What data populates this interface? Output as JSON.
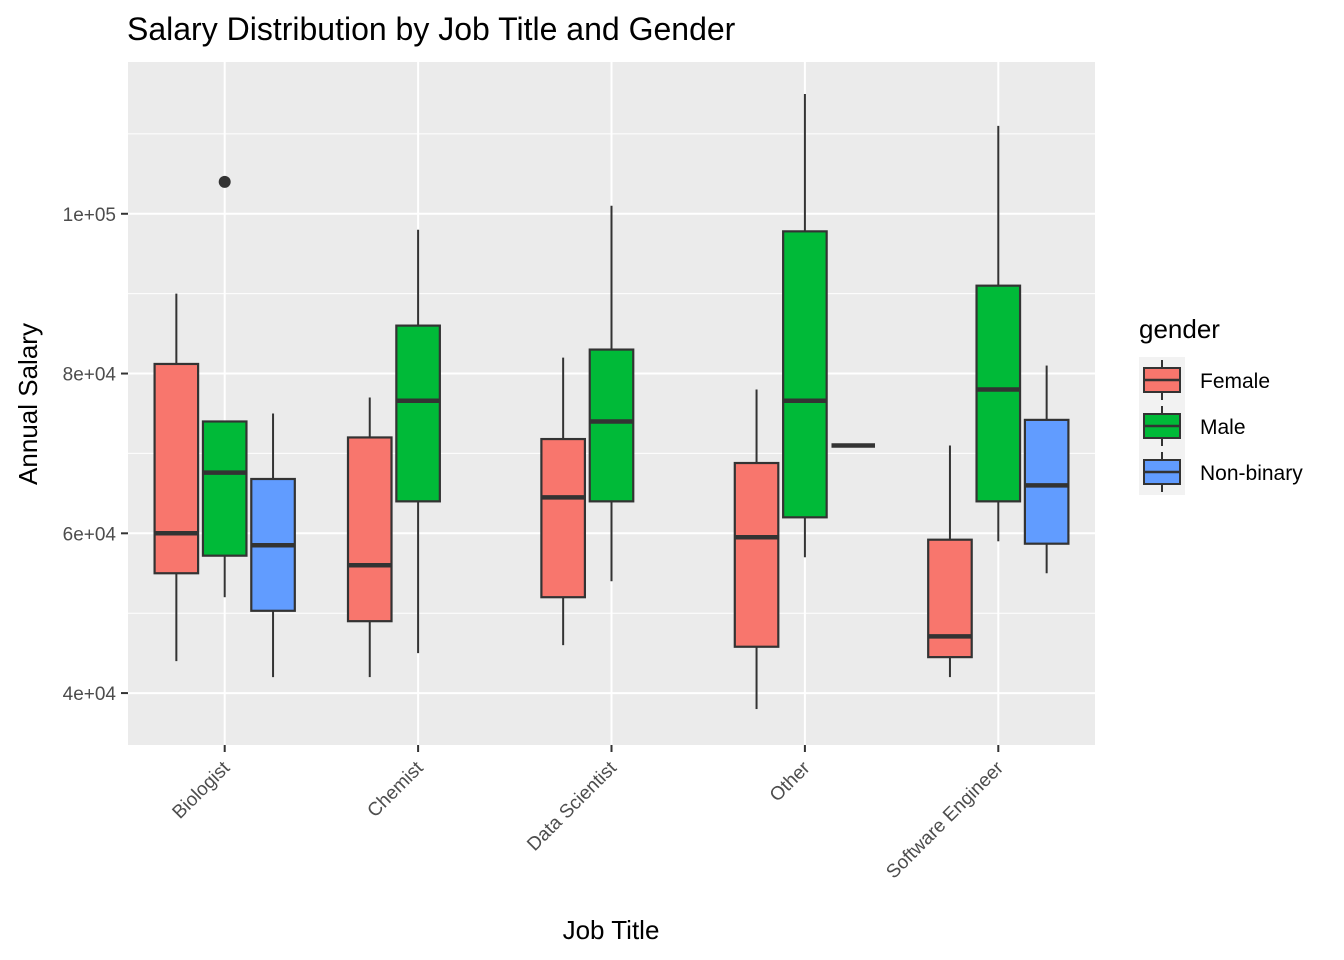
{
  "chart_data": {
    "type": "boxplot",
    "title": "Salary Distribution by Job Title and Gender",
    "xlabel": "Job Title",
    "ylabel": "Annual Salary",
    "categories": [
      "Biologist",
      "Chemist",
      "Data Scientist",
      "Other",
      "Software Engineer"
    ],
    "ylim": [
      33500,
      119000
    ],
    "yticks": [
      40000,
      60000,
      80000,
      100000
    ],
    "ytick_labels": [
      "4e+04",
      "6e+04",
      "8e+04",
      "1e+05"
    ],
    "grid": true,
    "legend": {
      "title": "gender",
      "position": "right",
      "entries": [
        "Female",
        "Male",
        "Non-binary"
      ]
    },
    "colors": {
      "Female": "#F8766D",
      "Male": "#00BA38",
      "Non-binary": "#619CFF",
      "panel": "#EBEBEB",
      "grid": "#FFFFFF",
      "outline": "#333333"
    },
    "series": [
      {
        "name": "Female",
        "boxes": [
          {
            "category": "Biologist",
            "min": 44000,
            "q1": 55000,
            "median": 60000,
            "q3": 81200,
            "max": 90000,
            "outliers": []
          },
          {
            "category": "Chemist",
            "min": 42000,
            "q1": 49000,
            "median": 56000,
            "q3": 72000,
            "max": 77000,
            "outliers": []
          },
          {
            "category": "Data Scientist",
            "min": 46000,
            "q1": 52000,
            "median": 64500,
            "q3": 71800,
            "max": 82000,
            "outliers": []
          },
          {
            "category": "Other",
            "min": 38000,
            "q1": 45800,
            "median": 59500,
            "q3": 68800,
            "max": 78000,
            "outliers": []
          },
          {
            "category": "Software Engineer",
            "min": 42000,
            "q1": 44500,
            "median": 47100,
            "q3": 59200,
            "max": 71000,
            "outliers": []
          }
        ]
      },
      {
        "name": "Male",
        "boxes": [
          {
            "category": "Biologist",
            "min": 52000,
            "q1": 57200,
            "median": 67600,
            "q3": 74000,
            "max": 74000,
            "outliers": [
              104000
            ]
          },
          {
            "category": "Chemist",
            "min": 45000,
            "q1": 64000,
            "median": 76600,
            "q3": 86000,
            "max": 98000,
            "outliers": []
          },
          {
            "category": "Data Scientist",
            "min": 54000,
            "q1": 64000,
            "median": 74000,
            "q3": 83000,
            "max": 101000,
            "outliers": []
          },
          {
            "category": "Other",
            "min": 57000,
            "q1": 62000,
            "median": 76600,
            "q3": 97800,
            "max": 115000,
            "outliers": []
          },
          {
            "category": "Software Engineer",
            "min": 59000,
            "q1": 64000,
            "median": 78000,
            "q3": 91000,
            "max": 111000,
            "outliers": []
          }
        ]
      },
      {
        "name": "Non-binary",
        "boxes": [
          {
            "category": "Biologist",
            "min": 42000,
            "q1": 50300,
            "median": 58500,
            "q3": 66800,
            "max": 75000,
            "outliers": []
          },
          {
            "category": "Chemist",
            "min": null,
            "q1": null,
            "median": null,
            "q3": null,
            "max": null,
            "outliers": []
          },
          {
            "category": "Data Scientist",
            "min": null,
            "q1": null,
            "median": null,
            "q3": null,
            "max": null,
            "outliers": []
          },
          {
            "category": "Other",
            "min": 71000,
            "q1": 71000,
            "median": 71000,
            "q3": 71000,
            "max": 71000,
            "outliers": []
          },
          {
            "category": "Software Engineer",
            "min": 55000,
            "q1": 58700,
            "median": 66000,
            "q3": 74200,
            "max": 81000,
            "outliers": []
          }
        ]
      }
    ]
  }
}
